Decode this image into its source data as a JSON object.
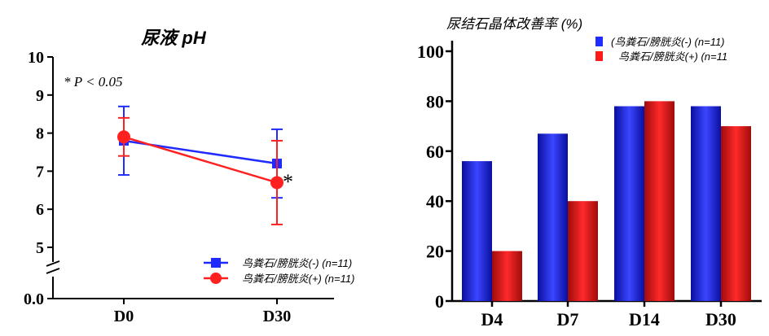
{
  "chart_data": [
    {
      "type": "line",
      "title": "尿液 pH",
      "annotation": "* P < 0.05",
      "star_marker": "*",
      "categories": [
        "D0",
        "D30"
      ],
      "y_ticks": [
        "0.0",
        "5",
        "6",
        "7",
        "8",
        "9",
        "10"
      ],
      "ylim": [
        5,
        10
      ],
      "axis_break": true,
      "legend_position": "bottom-right",
      "series": [
        {
          "name": "鸟粪石/膀胱炎(-) (n=11)",
          "color": "#1f2bff",
          "marker": "square",
          "values": [
            7.8,
            7.2
          ],
          "error_low": [
            6.9,
            6.3
          ],
          "error_high": [
            8.7,
            8.1
          ]
        },
        {
          "name": "鸟粪石/膀胱炎(+) (n=11)",
          "color": "#ff2020",
          "marker": "circle",
          "values": [
            7.9,
            6.7
          ],
          "error_low": [
            7.4,
            5.6
          ],
          "error_high": [
            8.4,
            7.8
          ]
        }
      ]
    },
    {
      "type": "bar",
      "title": "尿结石晶体改善率 (%)",
      "categories": [
        "D4",
        "D7",
        "D14",
        "D30"
      ],
      "ylim": [
        0,
        100
      ],
      "y_ticks": [
        "0",
        "20",
        "40",
        "60",
        "80",
        "100"
      ],
      "legend_position": "top-right",
      "series": [
        {
          "name": "(鸟粪石/膀胱炎(-) (n=11)",
          "color": "#1f2bff",
          "values": [
            56,
            67,
            78,
            78
          ]
        },
        {
          "name": "鸟粪石/膀胱炎(+) (n=11",
          "color": "#ff1a1a",
          "values": [
            20,
            40,
            80,
            70
          ]
        }
      ]
    }
  ]
}
